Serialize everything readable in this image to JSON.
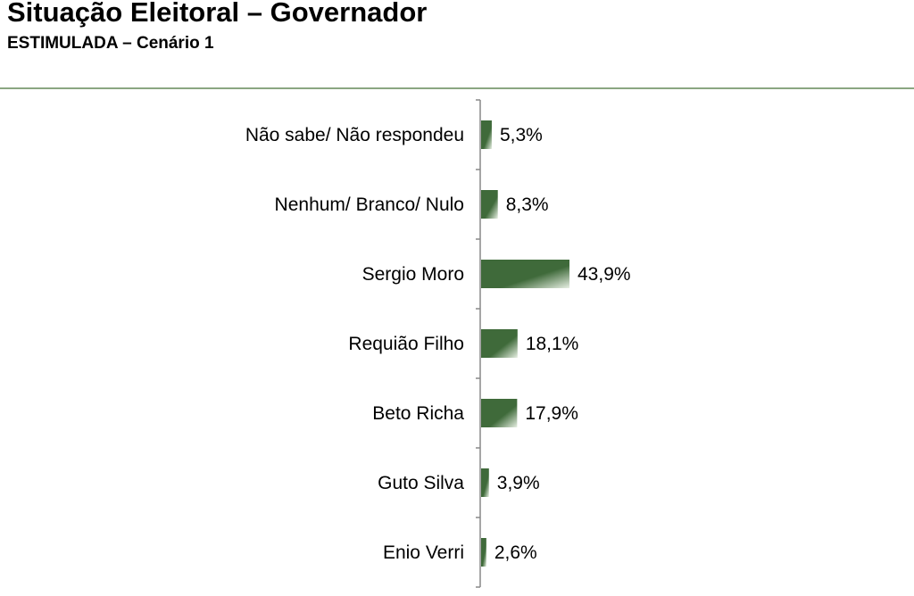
{
  "header": {
    "title": "Situação Eleitoral – Governador",
    "subtitle": "ESTIMULADA – Cenário 1"
  },
  "colors": {
    "bar_dark": "#3f6a3a",
    "bar_light": "#e7efe3",
    "axis": "#888888",
    "divider": "#8aa681"
  },
  "chart_data": {
    "type": "bar",
    "orientation": "horizontal",
    "title": "Situação Eleitoral – Governador",
    "subtitle": "ESTIMULADA – Cenário 1",
    "categories": [
      "Não sabe/ Não respondeu",
      "Nenhum/ Branco/ Nulo",
      "Sergio Moro",
      "Requião Filho",
      "Beto Richa",
      "Guto Silva",
      "Enio Verri"
    ],
    "values": [
      5.3,
      8.3,
      43.9,
      18.1,
      17.9,
      3.9,
      2.6
    ],
    "value_labels": [
      "5,3%",
      "8,3%",
      "43,9%",
      "18,1%",
      "17,9%",
      "3,9%",
      "2,6%"
    ],
    "unit": "%",
    "grid": false,
    "legend": "none"
  }
}
